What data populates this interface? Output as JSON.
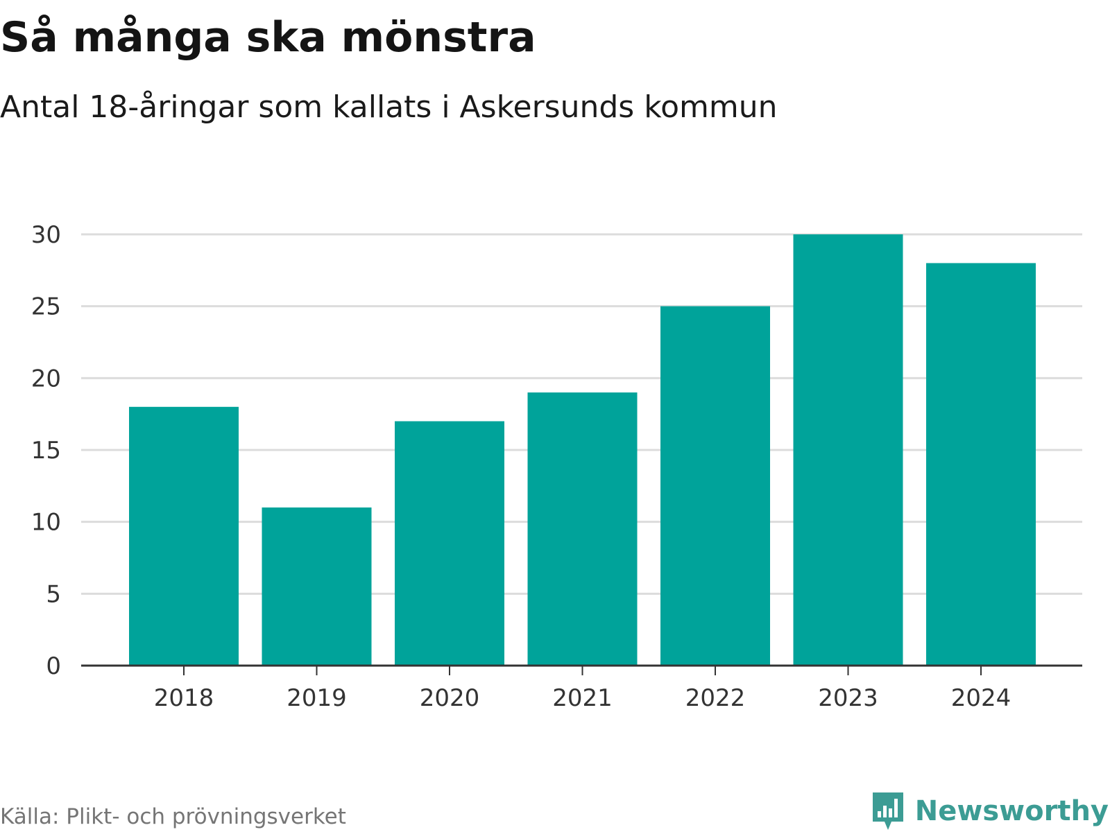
{
  "header": {
    "title": "Så många ska mönstra",
    "subtitle": "Antal 18-åringar som kallats i Askersunds kommun"
  },
  "footer": {
    "source": "Källa: Plikt- och prövningsverket",
    "brand": "Newsworthy",
    "brand_icon": "bar-chart-speech-bubble-icon"
  },
  "colors": {
    "bar": "#00a39a",
    "grid": "#dcdcdc",
    "axis": "#333333",
    "tick_label": "#333333",
    "brand": "#3c9c94",
    "source": "#757575"
  },
  "chart_data": {
    "type": "bar",
    "title": "Så många ska mönstra",
    "subtitle": "Antal 18-åringar som kallats i Askersunds kommun",
    "xlabel": "",
    "ylabel": "",
    "categories": [
      "2018",
      "2019",
      "2020",
      "2021",
      "2022",
      "2023",
      "2024"
    ],
    "values": [
      18,
      11,
      17,
      19,
      25,
      30,
      28
    ],
    "ylim": [
      0,
      30
    ],
    "yticks": [
      0,
      5,
      10,
      15,
      20,
      25,
      30
    ],
    "grid": true,
    "legend": "none"
  }
}
